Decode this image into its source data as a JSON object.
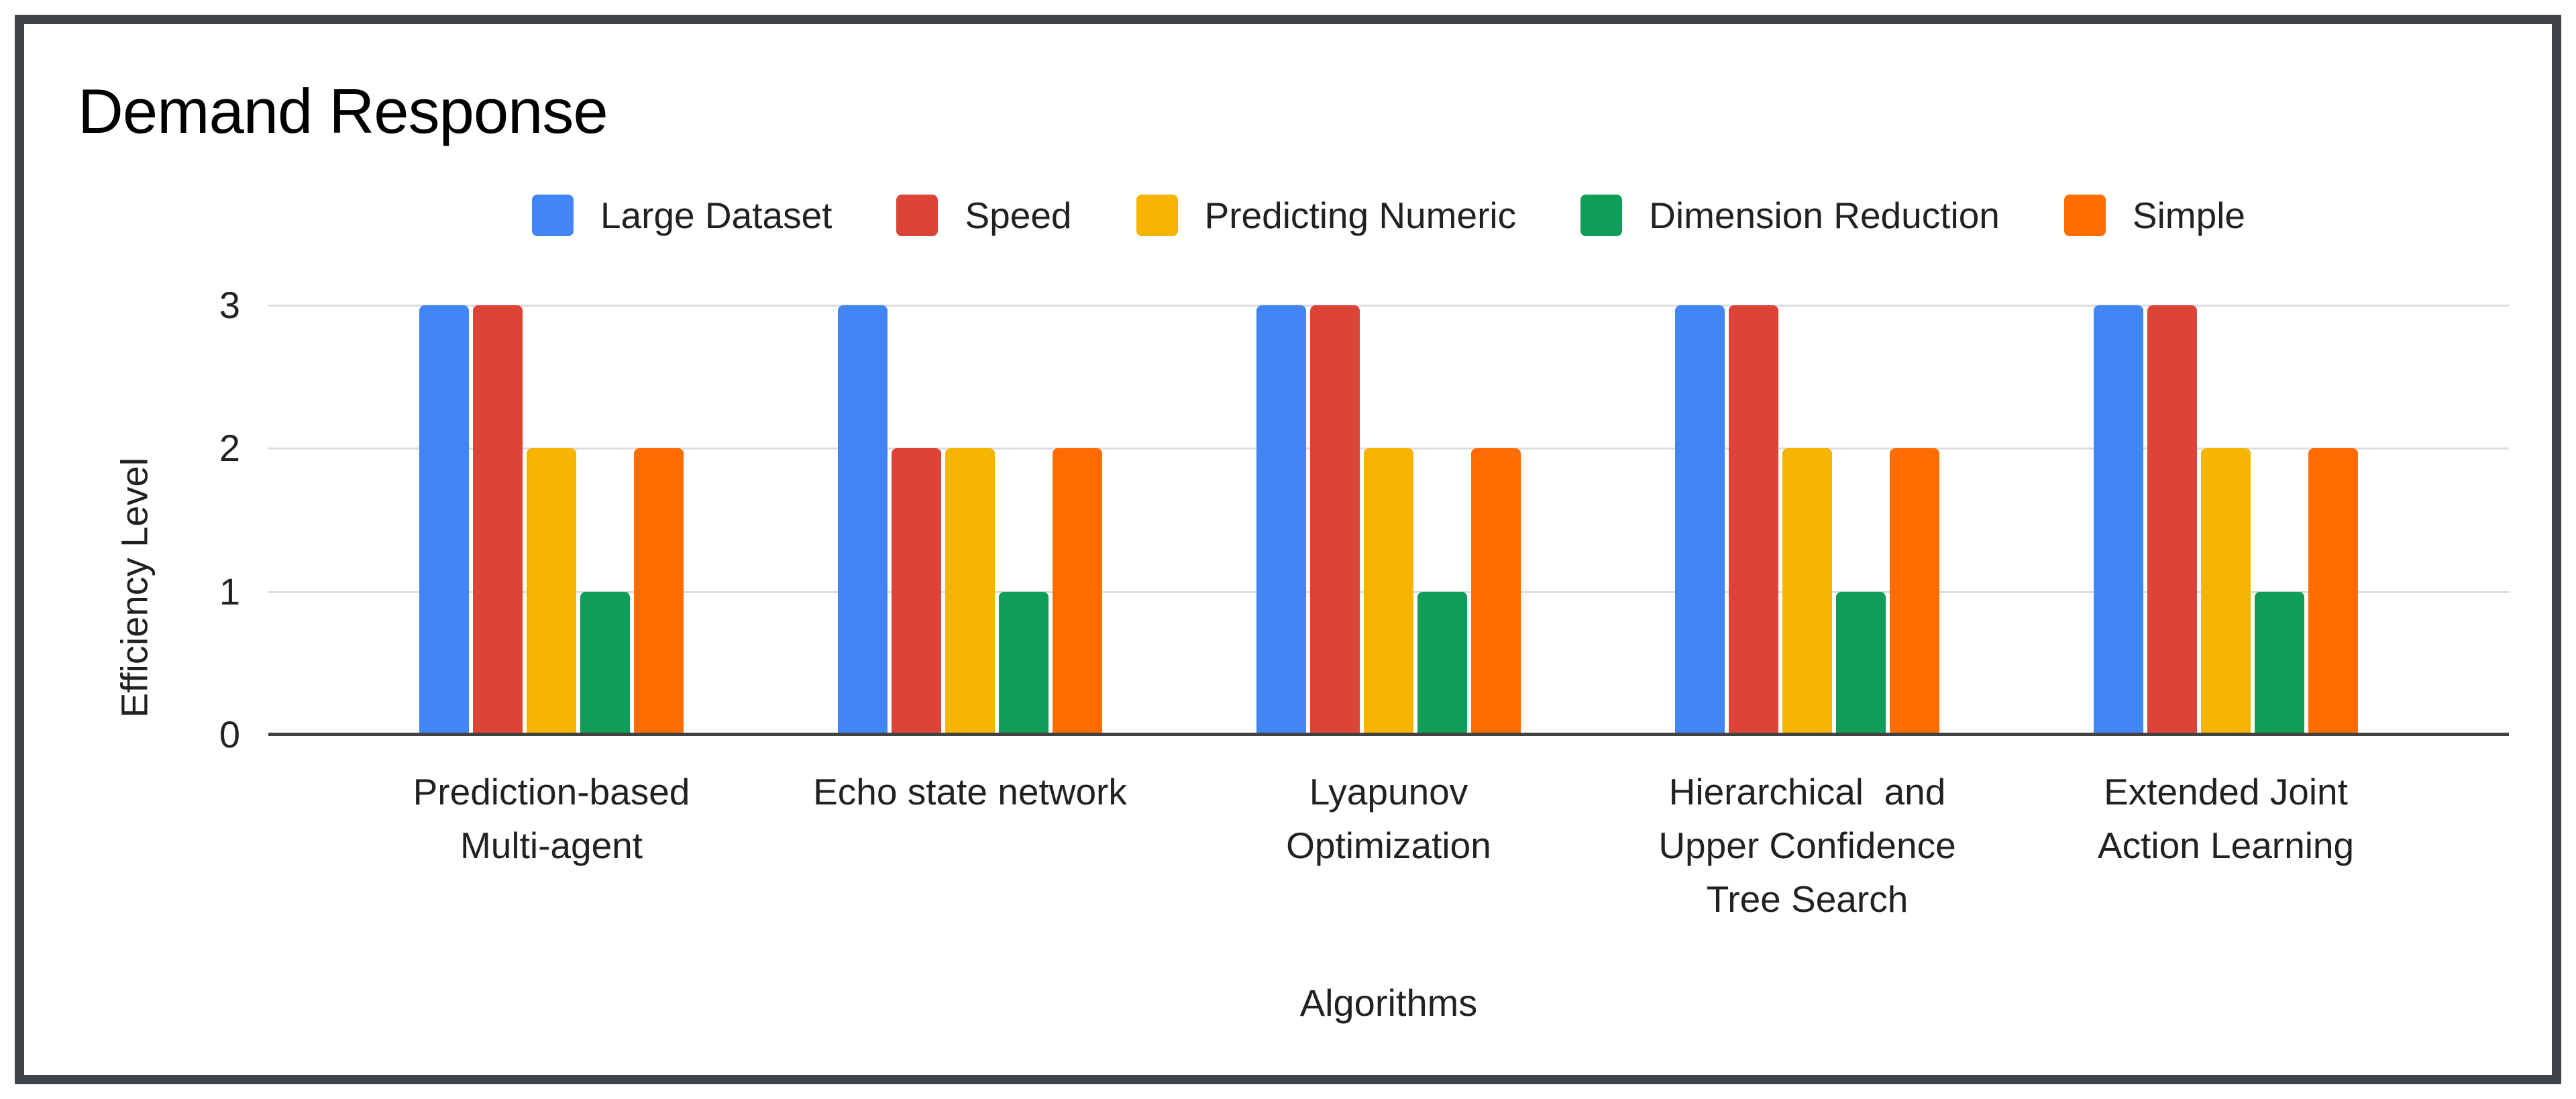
{
  "chart_data": {
    "type": "bar",
    "title": "Demand Response",
    "xlabel": "Algorithms",
    "ylabel": "Efficiency Level",
    "ylim": [
      0,
      3
    ],
    "yticks": [
      0,
      1,
      2,
      3
    ],
    "grid": true,
    "legend_position": "top",
    "categories": [
      "Prediction-based Multi-agent",
      "Echo state network",
      "Lyapunov Optimization",
      "Hierarchical  and Upper Confidence Tree Search",
      "Extended Joint Action Learning"
    ],
    "category_lines": [
      [
        "Prediction-based",
        "Multi-agent"
      ],
      [
        "Echo state network"
      ],
      [
        "Lyapunov",
        "Optimization"
      ],
      [
        "Hierarchical  and",
        "Upper Confidence",
        "Tree Search"
      ],
      [
        "Extended Joint",
        "Action Learning"
      ]
    ],
    "series": [
      {
        "name": "Large Dataset",
        "color": "#4285F4",
        "values": [
          3,
          3,
          3,
          3,
          3
        ]
      },
      {
        "name": "Speed",
        "color": "#DB4437",
        "values": [
          3,
          2,
          3,
          3,
          3
        ]
      },
      {
        "name": "Predicting Numeric",
        "color": "#F4B400",
        "values": [
          2,
          2,
          2,
          2,
          2
        ]
      },
      {
        "name": "Dimension Reduction",
        "color": "#0F9D58",
        "values": [
          1,
          1,
          1,
          1,
          1
        ]
      },
      {
        "name": "Simple",
        "color": "#FF6D00",
        "values": [
          2,
          2,
          2,
          2,
          2
        ]
      }
    ]
  },
  "style": {
    "frame_color": "#3e4347",
    "background": "#ffffff",
    "gridline_color": "#dadce0",
    "axis_line_color": "#424242",
    "text_color": "#202124",
    "title_color": "#000000"
  }
}
